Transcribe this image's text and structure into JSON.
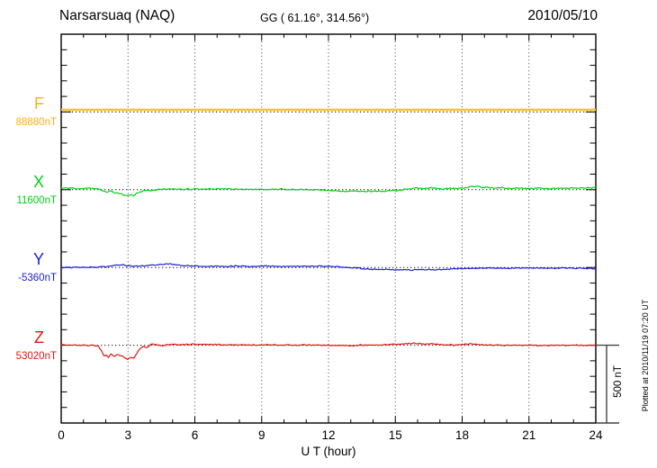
{
  "header": {
    "station": "Narsarsuaq (NAQ)",
    "coords": "GG ( 61.16°, 314.56°)",
    "date": "2010/05/10"
  },
  "x_axis": {
    "label": "U T (hour)",
    "min": 0,
    "max": 24,
    "major_ticks": [
      0,
      3,
      6,
      9,
      12,
      15,
      18,
      21,
      24
    ],
    "minor_step": 1
  },
  "scale_bar": {
    "label": "500 nT",
    "value_nT": 500
  },
  "footer_note": "Plotted at 2010/11/19 07:20 UT",
  "chart_data": {
    "type": "line",
    "title": "Narsarsuaq (NAQ) magnetogram 2010/05/10",
    "x": {
      "label": "U T (hour)",
      "min": 0,
      "max": 24,
      "major_ticks": [
        0,
        3,
        6,
        9,
        12,
        15,
        18,
        21,
        24
      ],
      "minor_step": 1,
      "gridlines_at": [
        3,
        6,
        9,
        12,
        15,
        18,
        21
      ],
      "grid_style": "dotted"
    },
    "y": {
      "units": "nT",
      "tick_interval_nT": 100,
      "range_nT": 2500,
      "baseline_spacing_nT": 500,
      "scale_bar_nT": 500,
      "note": "series points are [hour, offset_nT_from_component_baseline]"
    },
    "series": [
      {
        "name": "F",
        "color": "#FFBE33",
        "label_color": "#FFAE19",
        "baseline_label": "88880nT",
        "baseline_nT": 88880,
        "noise_nT": 0.7,
        "stroke_width": 2.4,
        "points": [
          [
            0,
            14
          ],
          [
            6,
            14
          ],
          [
            12,
            14
          ],
          [
            18,
            14
          ],
          [
            24,
            14
          ]
        ]
      },
      {
        "name": "X",
        "color": "#00CE14",
        "label_color": "#00CE14",
        "baseline_label": "11600nT",
        "baseline_nT": 11600,
        "noise_nT": 3.5,
        "stroke_width": 1.2,
        "points": [
          [
            0,
            9
          ],
          [
            0.4,
            11
          ],
          [
            0.8,
            7
          ],
          [
            1.2,
            10
          ],
          [
            1.5,
            8
          ],
          [
            1.7,
            5
          ],
          [
            1.9,
            -6
          ],
          [
            2.05,
            -13
          ],
          [
            2.2,
            -9
          ],
          [
            2.35,
            -17
          ],
          [
            2.5,
            -21
          ],
          [
            2.65,
            -27
          ],
          [
            2.8,
            -34
          ],
          [
            2.95,
            -38
          ],
          [
            3.1,
            -32
          ],
          [
            3.25,
            -36
          ],
          [
            3.4,
            -24
          ],
          [
            3.55,
            -14
          ],
          [
            3.7,
            -9
          ],
          [
            3.85,
            -3
          ],
          [
            4.0,
            -7
          ],
          [
            4.2,
            -1
          ],
          [
            4.5,
            3
          ],
          [
            5.0,
            5
          ],
          [
            5.5,
            3
          ],
          [
            6.0,
            5
          ],
          [
            6.5,
            3
          ],
          [
            7.0,
            5
          ],
          [
            7.5,
            3
          ],
          [
            8.0,
            4
          ],
          [
            8.5,
            2
          ],
          [
            9.0,
            4
          ],
          [
            9.5,
            2
          ],
          [
            10.0,
            3
          ],
          [
            10.5,
            1
          ],
          [
            11.0,
            1
          ],
          [
            11.5,
            -1
          ],
          [
            12.0,
            -3
          ],
          [
            12.4,
            -8
          ],
          [
            12.8,
            -11
          ],
          [
            13.2,
            -8
          ],
          [
            13.6,
            -10
          ],
          [
            14.0,
            -9
          ],
          [
            14.4,
            -11
          ],
          [
            14.8,
            -4
          ],
          [
            15.1,
            -7
          ],
          [
            15.4,
            2
          ],
          [
            15.7,
            7
          ],
          [
            16.0,
            11
          ],
          [
            16.3,
            7
          ],
          [
            16.6,
            13
          ],
          [
            16.9,
            9
          ],
          [
            17.2,
            5
          ],
          [
            17.5,
            9
          ],
          [
            17.8,
            7
          ],
          [
            18.1,
            12
          ],
          [
            18.4,
            20
          ],
          [
            18.7,
            23
          ],
          [
            18.9,
            13
          ],
          [
            19.1,
            17
          ],
          [
            19.4,
            10
          ],
          [
            19.7,
            13
          ],
          [
            20.0,
            9
          ],
          [
            20.5,
            11
          ],
          [
            21.0,
            8
          ],
          [
            21.5,
            10
          ],
          [
            22.0,
            8
          ],
          [
            22.5,
            10
          ],
          [
            23.0,
            9
          ],
          [
            23.5,
            11
          ],
          [
            24,
            13
          ]
        ]
      },
      {
        "name": "Y",
        "color": "#1C1CD6",
        "label_color": "#1C1CD6",
        "baseline_label": "-5360nT",
        "baseline_nT": -5360,
        "noise_nT": 3,
        "stroke_width": 1.2,
        "points": [
          [
            0,
            -2
          ],
          [
            0.5,
            0
          ],
          [
            1.0,
            1
          ],
          [
            1.5,
            2
          ],
          [
            1.9,
            4
          ],
          [
            2.2,
            9
          ],
          [
            2.5,
            15
          ],
          [
            2.75,
            17
          ],
          [
            3.0,
            11
          ],
          [
            3.2,
            7
          ],
          [
            3.5,
            9
          ],
          [
            3.8,
            12
          ],
          [
            4.2,
            16
          ],
          [
            4.6,
            20
          ],
          [
            4.95,
            23
          ],
          [
            5.2,
            18
          ],
          [
            5.5,
            13
          ],
          [
            5.8,
            11
          ],
          [
            6.2,
            9
          ],
          [
            6.6,
            8
          ],
          [
            7.0,
            9
          ],
          [
            7.5,
            7
          ],
          [
            8.0,
            8
          ],
          [
            8.5,
            7
          ],
          [
            9.0,
            9
          ],
          [
            9.5,
            8
          ],
          [
            10.0,
            7
          ],
          [
            10.5,
            8
          ],
          [
            11.0,
            8
          ],
          [
            11.5,
            9
          ],
          [
            12.0,
            8
          ],
          [
            12.3,
            6
          ],
          [
            12.7,
            2
          ],
          [
            13.1,
            -3
          ],
          [
            13.5,
            -7
          ],
          [
            13.9,
            -11
          ],
          [
            14.3,
            -14
          ],
          [
            14.7,
            -12
          ],
          [
            15.0,
            -16
          ],
          [
            15.3,
            -13
          ],
          [
            15.6,
            -16
          ],
          [
            15.9,
            -14
          ],
          [
            16.2,
            -15
          ],
          [
            16.5,
            -12
          ],
          [
            16.9,
            -14
          ],
          [
            17.3,
            -11
          ],
          [
            17.7,
            -9
          ],
          [
            18.1,
            -8
          ],
          [
            18.5,
            -6
          ],
          [
            19.0,
            -5
          ],
          [
            19.5,
            -4
          ],
          [
            20.0,
            -4
          ],
          [
            20.5,
            -3
          ],
          [
            21.0,
            -4
          ],
          [
            21.5,
            -3
          ],
          [
            22.0,
            -4
          ],
          [
            22.5,
            -3
          ],
          [
            23.0,
            -4
          ],
          [
            23.4,
            -5
          ],
          [
            23.7,
            -7
          ],
          [
            24,
            -11
          ]
        ]
      },
      {
        "name": "Z",
        "color": "#E01414",
        "label_color": "#E01414",
        "baseline_label": "53020nT",
        "baseline_nT": 53020,
        "noise_nT": 3.5,
        "stroke_width": 1.2,
        "points": [
          [
            0,
            0
          ],
          [
            0.5,
            1
          ],
          [
            1.0,
            0
          ],
          [
            1.4,
            -1
          ],
          [
            1.65,
            -4
          ],
          [
            1.8,
            -30
          ],
          [
            1.92,
            -72
          ],
          [
            2.02,
            -62
          ],
          [
            2.12,
            -74
          ],
          [
            2.25,
            -58
          ],
          [
            2.4,
            -70
          ],
          [
            2.55,
            -60
          ],
          [
            2.7,
            -68
          ],
          [
            2.85,
            -82
          ],
          [
            3.0,
            -90
          ],
          [
            3.1,
            -78
          ],
          [
            3.25,
            -84
          ],
          [
            3.4,
            -52
          ],
          [
            3.55,
            -20
          ],
          [
            3.7,
            -8
          ],
          [
            3.85,
            -14
          ],
          [
            4.0,
            0
          ],
          [
            4.12,
            7
          ],
          [
            4.3,
            3
          ],
          [
            4.5,
            -3
          ],
          [
            4.7,
            2
          ],
          [
            4.9,
            7
          ],
          [
            5.1,
            5
          ],
          [
            5.4,
            3
          ],
          [
            5.7,
            6
          ],
          [
            6.0,
            9
          ],
          [
            6.3,
            5
          ],
          [
            6.6,
            7
          ],
          [
            7.0,
            3
          ],
          [
            7.5,
            2
          ],
          [
            8.0,
            1
          ],
          [
            8.5,
            0
          ],
          [
            9.0,
            2
          ],
          [
            9.5,
            1
          ],
          [
            10.0,
            2
          ],
          [
            10.5,
            1
          ],
          [
            11.0,
            2
          ],
          [
            11.5,
            1
          ],
          [
            12.0,
            0
          ],
          [
            12.4,
            -2
          ],
          [
            12.8,
            -3
          ],
          [
            13.2,
            -1
          ],
          [
            13.6,
            1
          ],
          [
            13.9,
            3
          ],
          [
            14.2,
            1
          ],
          [
            14.5,
            3
          ],
          [
            14.9,
            6
          ],
          [
            15.3,
            8
          ],
          [
            15.7,
            10
          ],
          [
            16.0,
            11
          ],
          [
            16.3,
            8
          ],
          [
            16.6,
            10
          ],
          [
            17.0,
            5
          ],
          [
            17.4,
            3
          ],
          [
            17.8,
            2
          ],
          [
            18.2,
            6
          ],
          [
            18.5,
            8
          ],
          [
            18.8,
            4
          ],
          [
            19.2,
            2
          ],
          [
            19.6,
            1
          ],
          [
            20.0,
            0
          ],
          [
            20.5,
            1
          ],
          [
            21.0,
            0
          ],
          [
            21.5,
            -1
          ],
          [
            22.0,
            0
          ],
          [
            22.5,
            -1
          ],
          [
            23.0,
            0
          ],
          [
            23.5,
            -1
          ],
          [
            24,
            -1
          ]
        ]
      }
    ],
    "legend": "none",
    "layout": {
      "grid": "vertical dotted every 3h; dotted zero-baseline per component",
      "frame": true
    }
  }
}
